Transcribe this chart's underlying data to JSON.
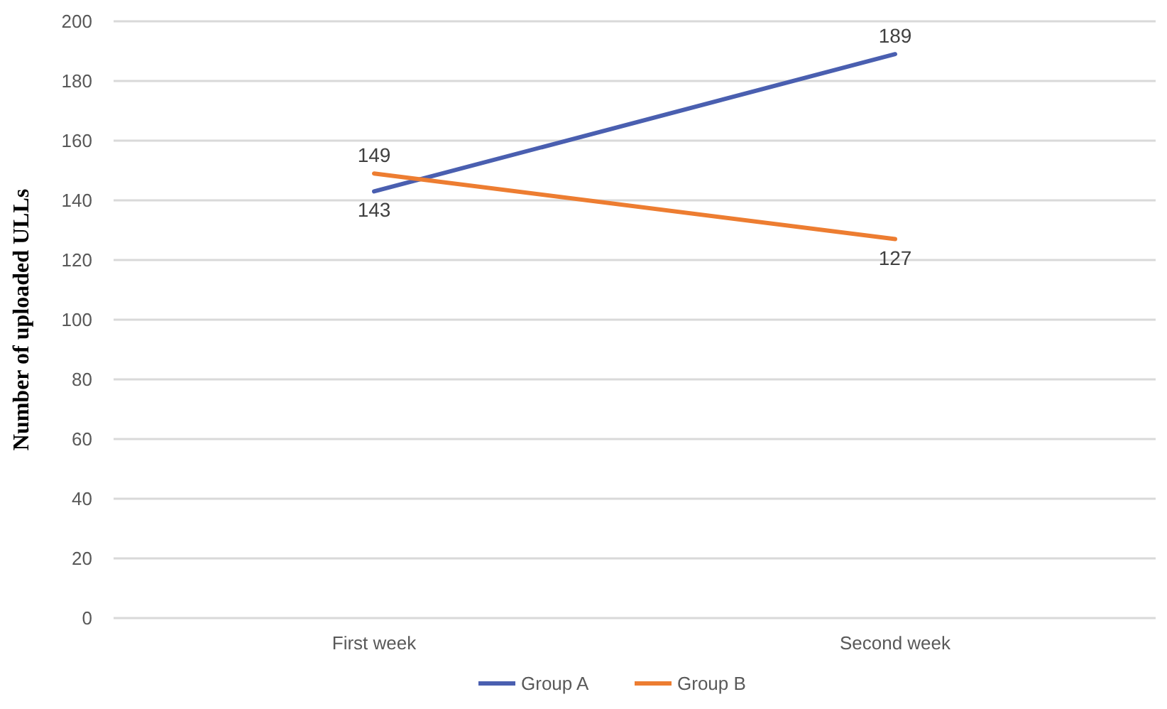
{
  "chart_data": {
    "type": "line",
    "ylabel": "Number of uploaded ULLs",
    "categories": [
      "First week",
      "Second week"
    ],
    "series": [
      {
        "name": "Group A",
        "color": "#4a5fb0",
        "values": [
          143,
          189
        ]
      },
      {
        "name": "Group B",
        "color": "#ed7d31",
        "values": [
          149,
          127
        ]
      }
    ],
    "ylim": [
      0,
      200
    ],
    "yticks": [
      0,
      20,
      40,
      60,
      80,
      100,
      120,
      140,
      160,
      180,
      200
    ],
    "grid": "y",
    "legend": "bottom",
    "data_labels": true,
    "marker": "none",
    "line_style": "solid"
  }
}
